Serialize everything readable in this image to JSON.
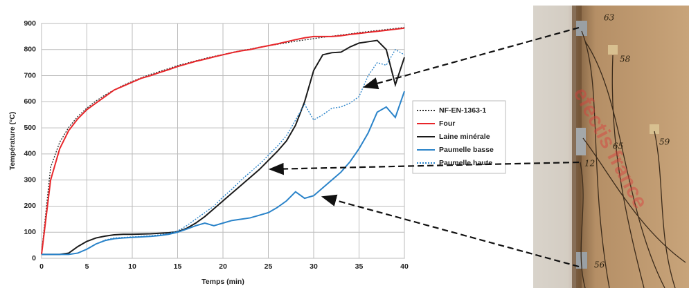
{
  "chart_data": {
    "type": "line",
    "x_label": "Temps (min)",
    "y_label": "Température (°C)",
    "x": [
      0,
      1,
      2,
      3,
      4,
      5,
      6,
      7,
      8,
      9,
      10,
      11,
      12,
      13,
      14,
      15,
      16,
      17,
      18,
      19,
      20,
      21,
      22,
      23,
      24,
      25,
      26,
      27,
      28,
      29,
      30,
      31,
      32,
      33,
      34,
      35,
      36,
      37,
      38,
      39,
      40
    ],
    "series": [
      {
        "name": "NF-EN-1363-1",
        "color": "#333333",
        "style": "dotted",
        "values": [
          20,
          349,
          445,
          502,
          544,
          576,
          603,
          626,
          645,
          663,
          678,
          692,
          705,
          716,
          727,
          739,
          748,
          757,
          766,
          774,
          781,
          789,
          796,
          802,
          809,
          815,
          820,
          826,
          832,
          837,
          842,
          847,
          851,
          856,
          860,
          865,
          869,
          873,
          877,
          881,
          885
        ]
      },
      {
        "name": "Four",
        "color": "#e8262a",
        "style": "solid",
        "values": [
          15,
          300,
          420,
          490,
          535,
          570,
          595,
          620,
          645,
          660,
          675,
          690,
          700,
          712,
          723,
          735,
          745,
          755,
          763,
          772,
          780,
          788,
          795,
          800,
          808,
          815,
          822,
          830,
          838,
          845,
          850,
          850,
          850,
          853,
          858,
          862,
          866,
          870,
          874,
          878,
          882
        ]
      },
      {
        "name": "Laine minérale",
        "color": "#1a1a1a",
        "style": "solid",
        "values": [
          15,
          15,
          15,
          20,
          45,
          65,
          78,
          85,
          90,
          92,
          92,
          93,
          94,
          96,
          98,
          102,
          115,
          135,
          160,
          190,
          220,
          250,
          280,
          310,
          340,
          375,
          410,
          450,
          510,
          600,
          720,
          780,
          788,
          790,
          810,
          825,
          830,
          835,
          800,
          665,
          770
        ]
      },
      {
        "name": "Paumelle basse",
        "color": "#2a83c9",
        "style": "solid",
        "values": [
          15,
          15,
          15,
          15,
          20,
          35,
          55,
          68,
          75,
          78,
          80,
          82,
          84,
          87,
          92,
          100,
          112,
          125,
          135,
          125,
          135,
          145,
          150,
          155,
          165,
          175,
          195,
          220,
          255,
          230,
          240,
          270,
          300,
          330,
          370,
          420,
          480,
          560,
          580,
          540,
          640
        ]
      },
      {
        "name": "Paumelle haute",
        "color": "#2a83c9",
        "style": "dotted",
        "values": [
          15,
          15,
          15,
          15,
          20,
          35,
          55,
          70,
          78,
          80,
          82,
          84,
          86,
          90,
          95,
          105,
          125,
          150,
          175,
          200,
          235,
          265,
          300,
          330,
          360,
          395,
          430,
          470,
          530,
          590,
          530,
          550,
          575,
          580,
          595,
          620,
          700,
          750,
          740,
          800,
          780
        ]
      }
    ],
    "xlim": [
      0,
      40
    ],
    "ylim": [
      0,
      900
    ],
    "xticks": [
      0,
      5,
      10,
      15,
      20,
      25,
      30,
      35,
      40
    ],
    "yticks": [
      0,
      100,
      200,
      300,
      400,
      500,
      600,
      700,
      800,
      900
    ],
    "grid": true,
    "legend": "right"
  },
  "photo": {
    "labels": [
      "63",
      "58",
      "65",
      "59",
      "12",
      "56"
    ],
    "watermark": "efectis france"
  }
}
